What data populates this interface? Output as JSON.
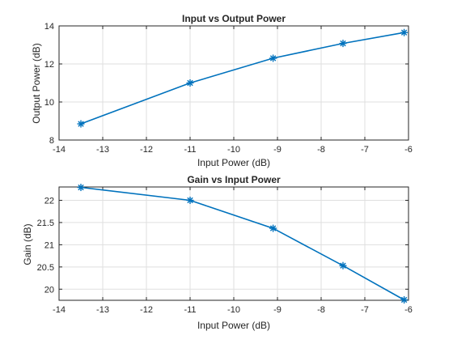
{
  "chart_data": [
    {
      "type": "line",
      "title": "Input vs Output Power",
      "xlabel": "Input Power (dB)",
      "ylabel": "Output Power (dB)",
      "xlim": [
        -14,
        -6
      ],
      "ylim": [
        8,
        14
      ],
      "xticks": [
        "-14",
        "-13",
        "-12",
        "-11",
        "-10",
        "-9",
        "-8",
        "-7",
        "-6"
      ],
      "yticks": [
        "8",
        "10",
        "12",
        "14"
      ],
      "grid": true,
      "color": "#0072BD",
      "marker": "asterisk",
      "series": [
        {
          "x": [
            -13.5,
            -11.0,
            -9.1,
            -7.5,
            -6.1
          ],
          "y": [
            8.85,
            11.0,
            12.3,
            13.08,
            13.65
          ]
        }
      ]
    },
    {
      "type": "line",
      "title": "Gain vs Input Power",
      "xlabel": "Input Power (dB)",
      "ylabel": "Gain (dB)",
      "xlim": [
        -14,
        -6
      ],
      "ylim": [
        19.75,
        22.3
      ],
      "xticks": [
        "-14",
        "-13",
        "-12",
        "-11",
        "-10",
        "-9",
        "-8",
        "-7",
        "-6"
      ],
      "yticks": [
        "20",
        "20.5",
        "21",
        "21.5",
        "22"
      ],
      "grid": true,
      "color": "#0072BD",
      "marker": "asterisk",
      "series": [
        {
          "x": [
            -13.5,
            -11.0,
            -9.1,
            -7.5,
            -6.1
          ],
          "y": [
            22.29,
            22.0,
            21.37,
            20.53,
            19.76
          ]
        }
      ]
    }
  ]
}
